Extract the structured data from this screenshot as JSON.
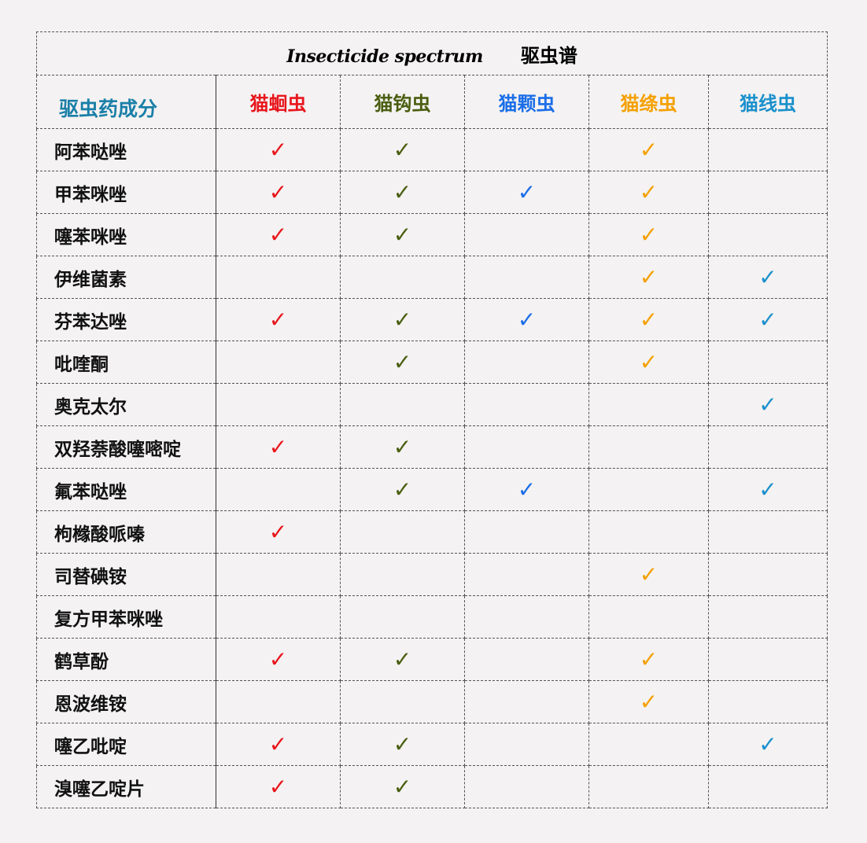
{
  "title": {
    "english": "Insecticide spectrum",
    "chinese": "驱虫谱"
  },
  "header": {
    "ingredient_label": "驱虫药成分",
    "ingredient_color": "#1a7fa8",
    "columns": [
      {
        "label": "猫蛔虫",
        "color": "#e8161c"
      },
      {
        "label": "猫钩虫",
        "color": "#4a5e10"
      },
      {
        "label": "猫颗虫",
        "color": "#1a6ee8"
      },
      {
        "label": "猫绦虫",
        "color": "#f5a000"
      },
      {
        "label": "猫线虫",
        "color": "#1a90cc"
      }
    ]
  },
  "check_symbol": "✓",
  "rows": [
    {
      "name": "阿苯哒唑",
      "checks": [
        true,
        true,
        false,
        true,
        false
      ]
    },
    {
      "name": "甲苯咪唑",
      "checks": [
        true,
        true,
        true,
        true,
        false
      ]
    },
    {
      "name": "噻苯咪唑",
      "checks": [
        true,
        true,
        false,
        true,
        false
      ]
    },
    {
      "name": "伊维菌素",
      "checks": [
        false,
        false,
        false,
        true,
        true
      ]
    },
    {
      "name": "芬苯达唑",
      "checks": [
        true,
        true,
        true,
        true,
        true
      ]
    },
    {
      "name": "吡喹酮",
      "checks": [
        false,
        true,
        false,
        true,
        false
      ]
    },
    {
      "name": "奥克太尔",
      "checks": [
        false,
        false,
        false,
        false,
        true
      ]
    },
    {
      "name": "双羟萘酸噻嘧啶",
      "checks": [
        true,
        true,
        false,
        false,
        false
      ]
    },
    {
      "name": "氟苯哒唑",
      "checks": [
        false,
        true,
        true,
        false,
        true
      ]
    },
    {
      "name": "枸橼酸哌嗪",
      "checks": [
        true,
        false,
        false,
        false,
        false
      ]
    },
    {
      "name": "司替碘铵",
      "checks": [
        false,
        false,
        false,
        true,
        false
      ]
    },
    {
      "name": "复方甲苯咪唑",
      "checks": [
        false,
        false,
        false,
        false,
        false
      ]
    },
    {
      "name": "鹤草酚",
      "checks": [
        true,
        true,
        false,
        true,
        false
      ]
    },
    {
      "name": "恩波维铵",
      "checks": [
        false,
        false,
        false,
        true,
        false
      ]
    },
    {
      "name": "噻乙吡啶",
      "checks": [
        true,
        true,
        false,
        false,
        true
      ]
    },
    {
      "name": "溴噻乙啶片",
      "checks": [
        true,
        true,
        false,
        false,
        false
      ]
    }
  ]
}
